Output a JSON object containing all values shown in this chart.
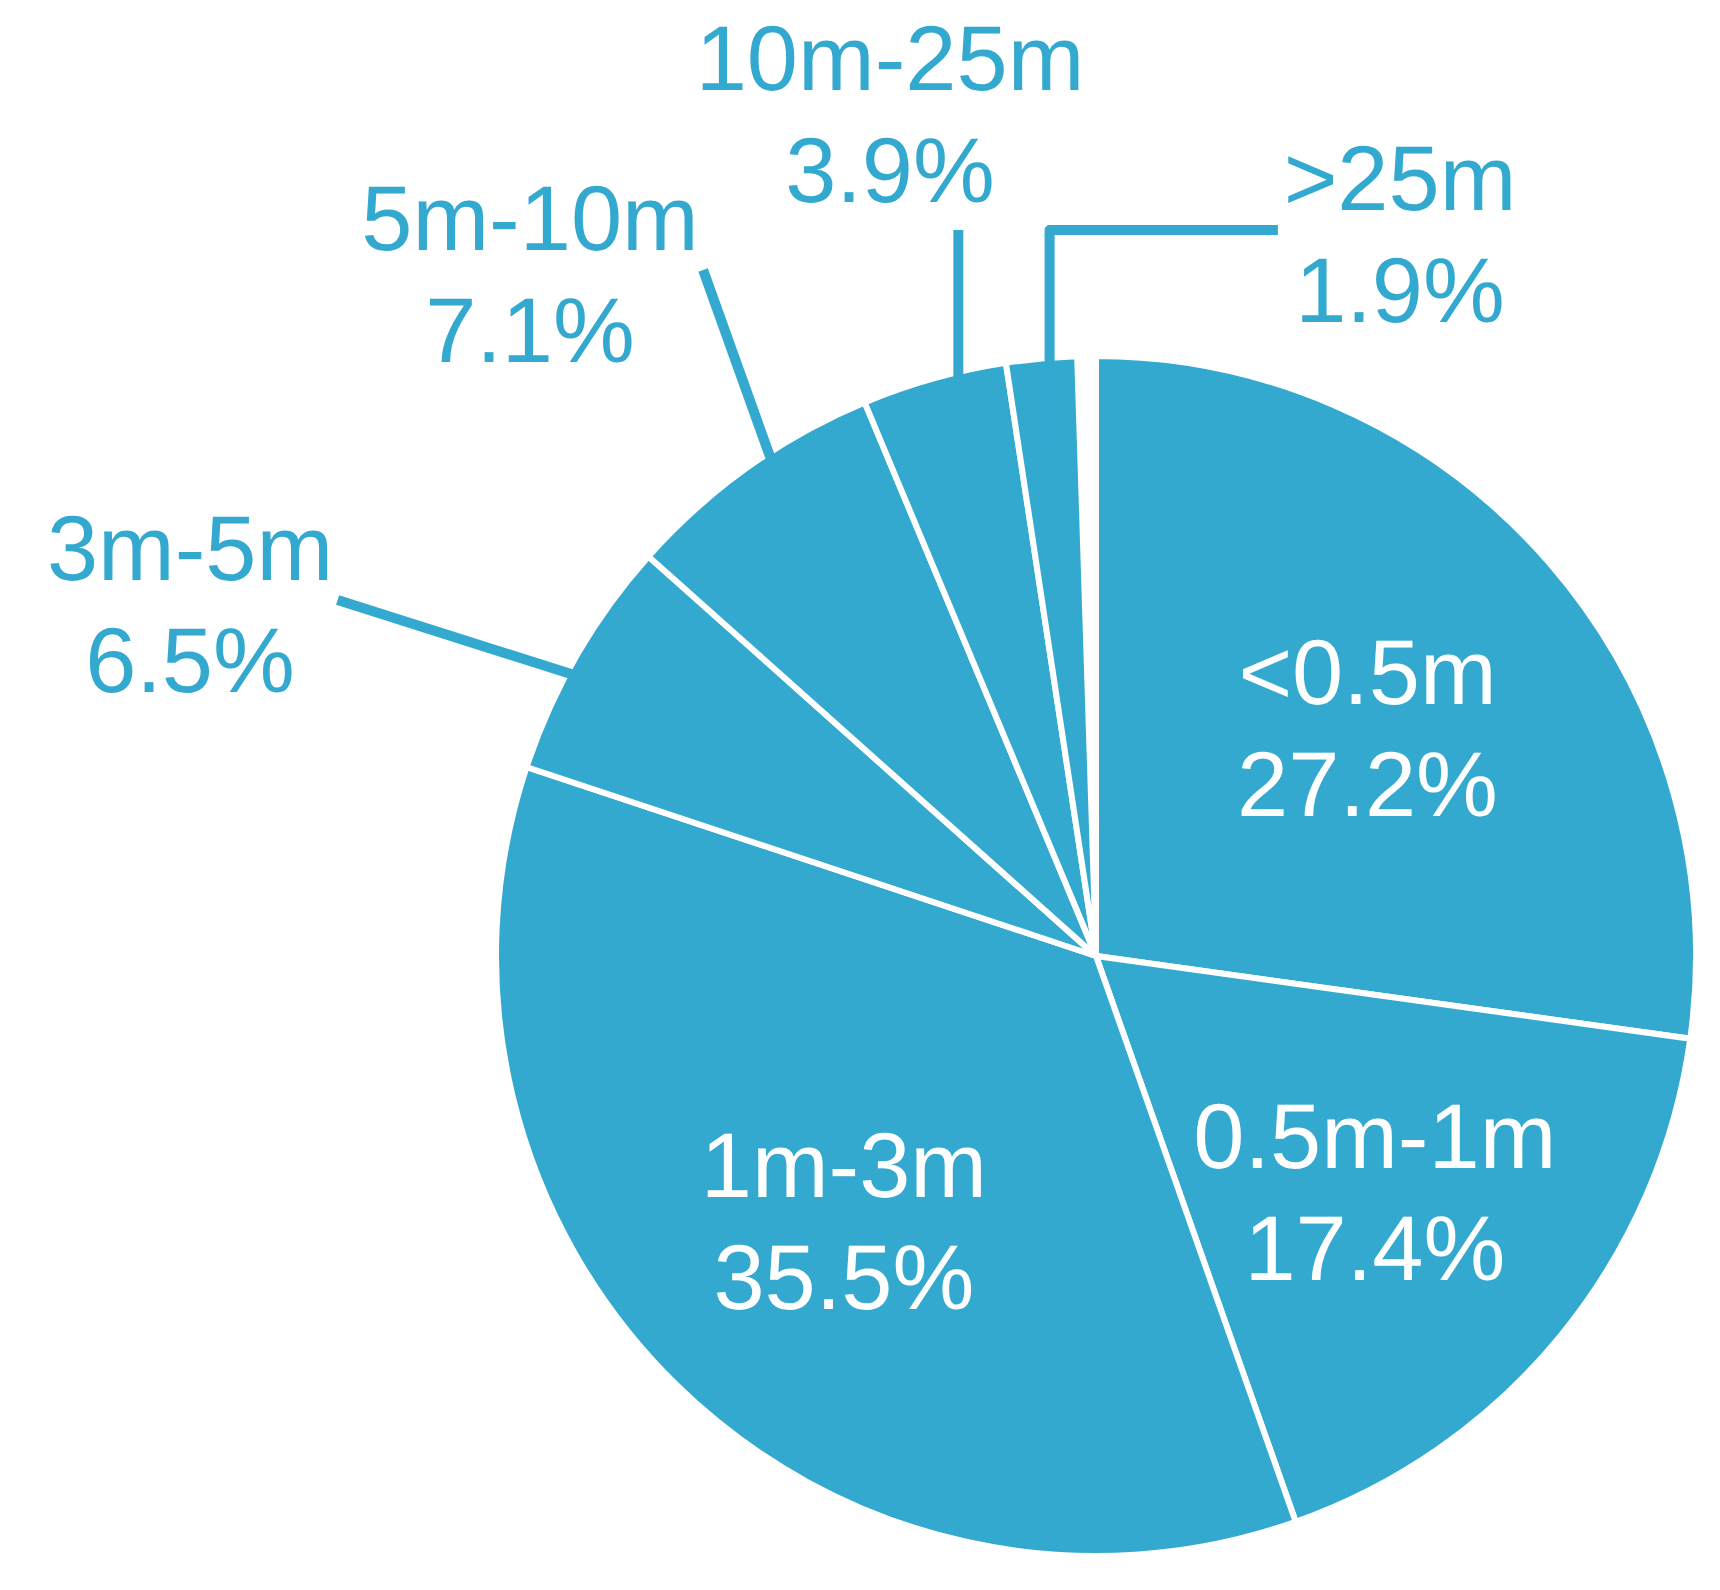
{
  "chart_data": {
    "type": "pie",
    "categories": [
      "<0.5m",
      "0.5m-1m",
      "1m-3m",
      "3m-5m",
      "5m-10m",
      "10m-25m",
      ">25m"
    ],
    "values": [
      27.2,
      17.4,
      35.5,
      6.5,
      7.1,
      3.9,
      1.9
    ],
    "colors": [
      "#33a9d0",
      "#33a9d0",
      "#33a9d0",
      "#33a9d0",
      "#33a9d0",
      "#33a9d0",
      "#33a9d0"
    ],
    "value_labels": [
      "27.2%",
      "17.4%",
      "35.5%",
      "6.5%",
      "7.1%",
      "3.9%",
      "1.9%"
    ]
  }
}
